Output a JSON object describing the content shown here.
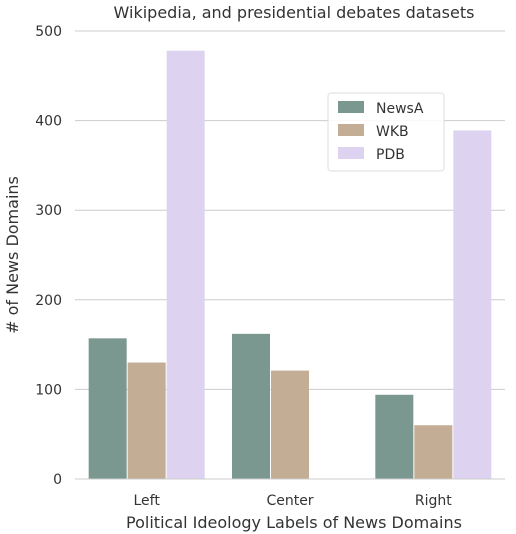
{
  "chart_data": {
    "type": "bar",
    "title": "Wikipedia, and presidential debates datasets",
    "xlabel": "Political Ideology Labels of News Domains",
    "ylabel": "# of News Domains",
    "categories": [
      "Left",
      "Center",
      "Right"
    ],
    "series": [
      {
        "name": "NewsA",
        "values": [
          157,
          162,
          94
        ],
        "color": "#7a9890"
      },
      {
        "name": "WKB",
        "values": [
          130,
          121,
          60
        ],
        "color": "#c4ad95"
      },
      {
        "name": "PDB",
        "values": [
          478,
          0,
          389
        ],
        "color": "#ddd3f0"
      }
    ],
    "ylim": [
      0,
      500
    ],
    "yticks": [
      0,
      100,
      200,
      300,
      400,
      500
    ],
    "grid": "horizontal",
    "legend_position": "upper-right"
  }
}
